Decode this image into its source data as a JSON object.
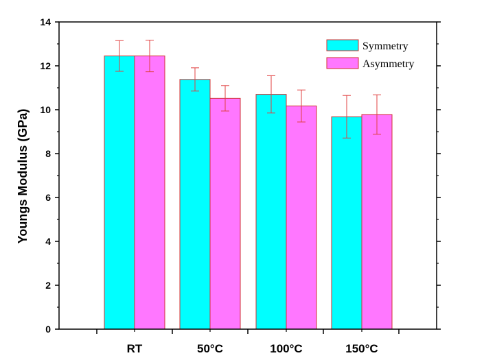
{
  "chart_data": {
    "type": "bar",
    "title": "",
    "xlabel": "",
    "ylabel": "Youngs Modulus (GPa)",
    "ylim": [
      0,
      14
    ],
    "yticks": [
      "0",
      "2",
      "4",
      "6",
      "8",
      "10",
      "12",
      "14"
    ],
    "categories": [
      "RT",
      "50°C",
      "100°C",
      "150°C"
    ],
    "series": [
      {
        "name": "Symmetry",
        "color": "#00ffff",
        "values": [
          12.45,
          11.38,
          10.7,
          9.68
        ],
        "errors": [
          0.7,
          0.53,
          0.85,
          0.97
        ]
      },
      {
        "name": "Asymmetry",
        "color": "#ff77ff",
        "values": [
          12.45,
          10.52,
          10.17,
          9.78
        ],
        "errors": [
          0.72,
          0.58,
          0.73,
          0.9
        ]
      }
    ],
    "colors": {
      "bar_edge": "#d03030",
      "error_bar": "#e04040",
      "axis": "#000000"
    },
    "grid": false,
    "legend": "top-right"
  }
}
